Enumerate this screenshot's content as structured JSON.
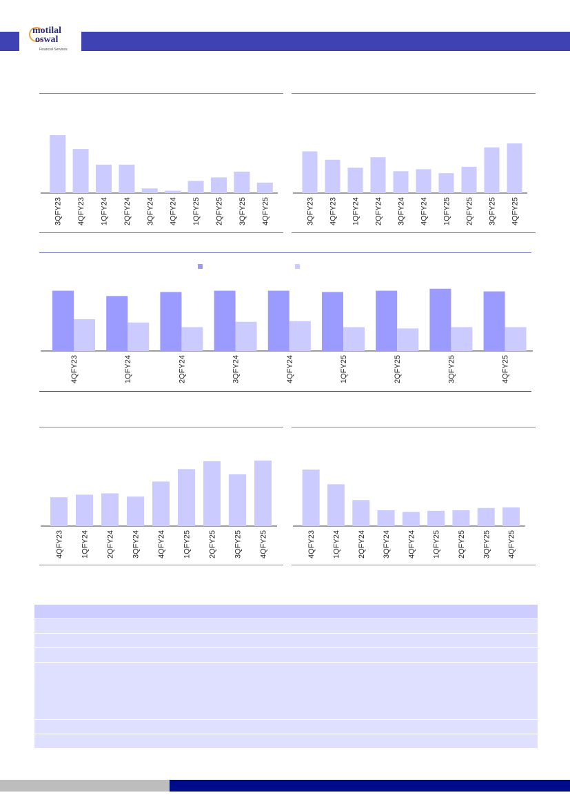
{
  "brand": {
    "logo_line1": "motilal",
    "logo_line2": "oswal",
    "logo_line3": "Financial Services"
  },
  "colors": {
    "header_bar": "#3f42b3",
    "bar_light": "#cbcbff",
    "bar_dark": "#9b9bff",
    "table_head": "#cdceff",
    "table_row": "#dfe0ff",
    "footer_blue": "#000b8a",
    "footer_gray": "#bdbdbd"
  },
  "chart_data": [
    {
      "type": "bar",
      "categories": [
        "3QFY23",
        "4QFY23",
        "1QFY24",
        "2QFY24",
        "3QFY24",
        "4QFY24",
        "1QFY25",
        "2QFY25",
        "3QFY25",
        "4QFY25"
      ],
      "values": [
        100,
        76,
        49,
        49,
        8,
        4,
        21,
        27,
        37,
        18
      ],
      "ylim": [
        0,
        100
      ]
    },
    {
      "type": "bar",
      "categories": [
        "3QFY23",
        "4QFY23",
        "1QFY24",
        "2QFY24",
        "3QFY24",
        "4QFY24",
        "1QFY25",
        "2QFY25",
        "3QFY25",
        "4QFY25"
      ],
      "values": [
        84,
        67,
        51,
        72,
        44,
        48,
        40,
        53,
        92,
        100
      ],
      "ylim": [
        0,
        100
      ]
    },
    {
      "type": "bar",
      "categories": [
        "4QFY23",
        "1QFY24",
        "2QFY24",
        "3QFY24",
        "4QFY24",
        "1QFY25",
        "2QFY25",
        "3QFY25",
        "4QFY25"
      ],
      "series": [
        {
          "values": [
            91,
            83,
            89,
            91,
            91,
            89,
            91,
            94,
            90
          ]
        },
        {
          "values": [
            48,
            43,
            36,
            44,
            45,
            36,
            34,
            36,
            36
          ]
        }
      ],
      "ylim": [
        0,
        100
      ]
    },
    {
      "type": "bar",
      "categories": [
        "4QFY23",
        "1QFY24",
        "2QFY24",
        "3QFY24",
        "4QFY24",
        "1QFY25",
        "2QFY25",
        "3QFY25",
        "4QFY25"
      ],
      "values": [
        44,
        48,
        50,
        45,
        68,
        87,
        99,
        79,
        100
      ],
      "ylim": [
        0,
        100
      ]
    },
    {
      "type": "bar",
      "categories": [
        "4QFY23",
        "1QFY24",
        "2QFY24",
        "3QFY24",
        "4QFY24",
        "1QFY25",
        "2QFY25",
        "3QFY25",
        "4QFY25"
      ],
      "values": [
        100,
        74,
        46,
        28,
        25,
        27,
        28,
        32,
        33
      ],
      "ylim": [
        0,
        100
      ]
    }
  ],
  "table": {
    "rows": [
      "head",
      "r1",
      "r2",
      "r3",
      "r4",
      "r5",
      "r6"
    ]
  }
}
